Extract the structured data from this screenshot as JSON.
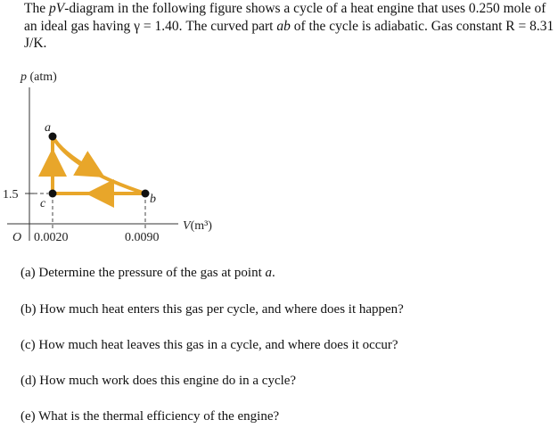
{
  "intro": [
    "The ",
    "pV",
    "-diagram in the following figure shows a cycle of a heat engine that uses 0.250 mole of an ideal gas having γ = 1.40. The curved part ",
    "ab",
    " of the cycle is adiabatic. Gas constant R = 8.31 J/K."
  ],
  "figure": {
    "y_axis_label": {
      "symbol": "p",
      "unit": "(atm)"
    },
    "x_axis_label": {
      "symbol": "V",
      "unit": "(m³)"
    },
    "origin": "O",
    "y_tick": "1.5",
    "x_ticks": [
      "0.0020",
      "0.0090"
    ],
    "points": [
      "a",
      "b",
      "c"
    ]
  },
  "questions": [
    [
      "(a) Determine the pressure of the gas at point ",
      "a",
      "."
    ],
    "(b) How much heat enters this gas per cycle, and where does it happen?",
    "(c) How much heat leaves this gas in a cycle, and where does it occur?",
    "(d) How much work does this engine do in a cycle?",
    "(e) What is the thermal efficiency of the engine?"
  ]
}
